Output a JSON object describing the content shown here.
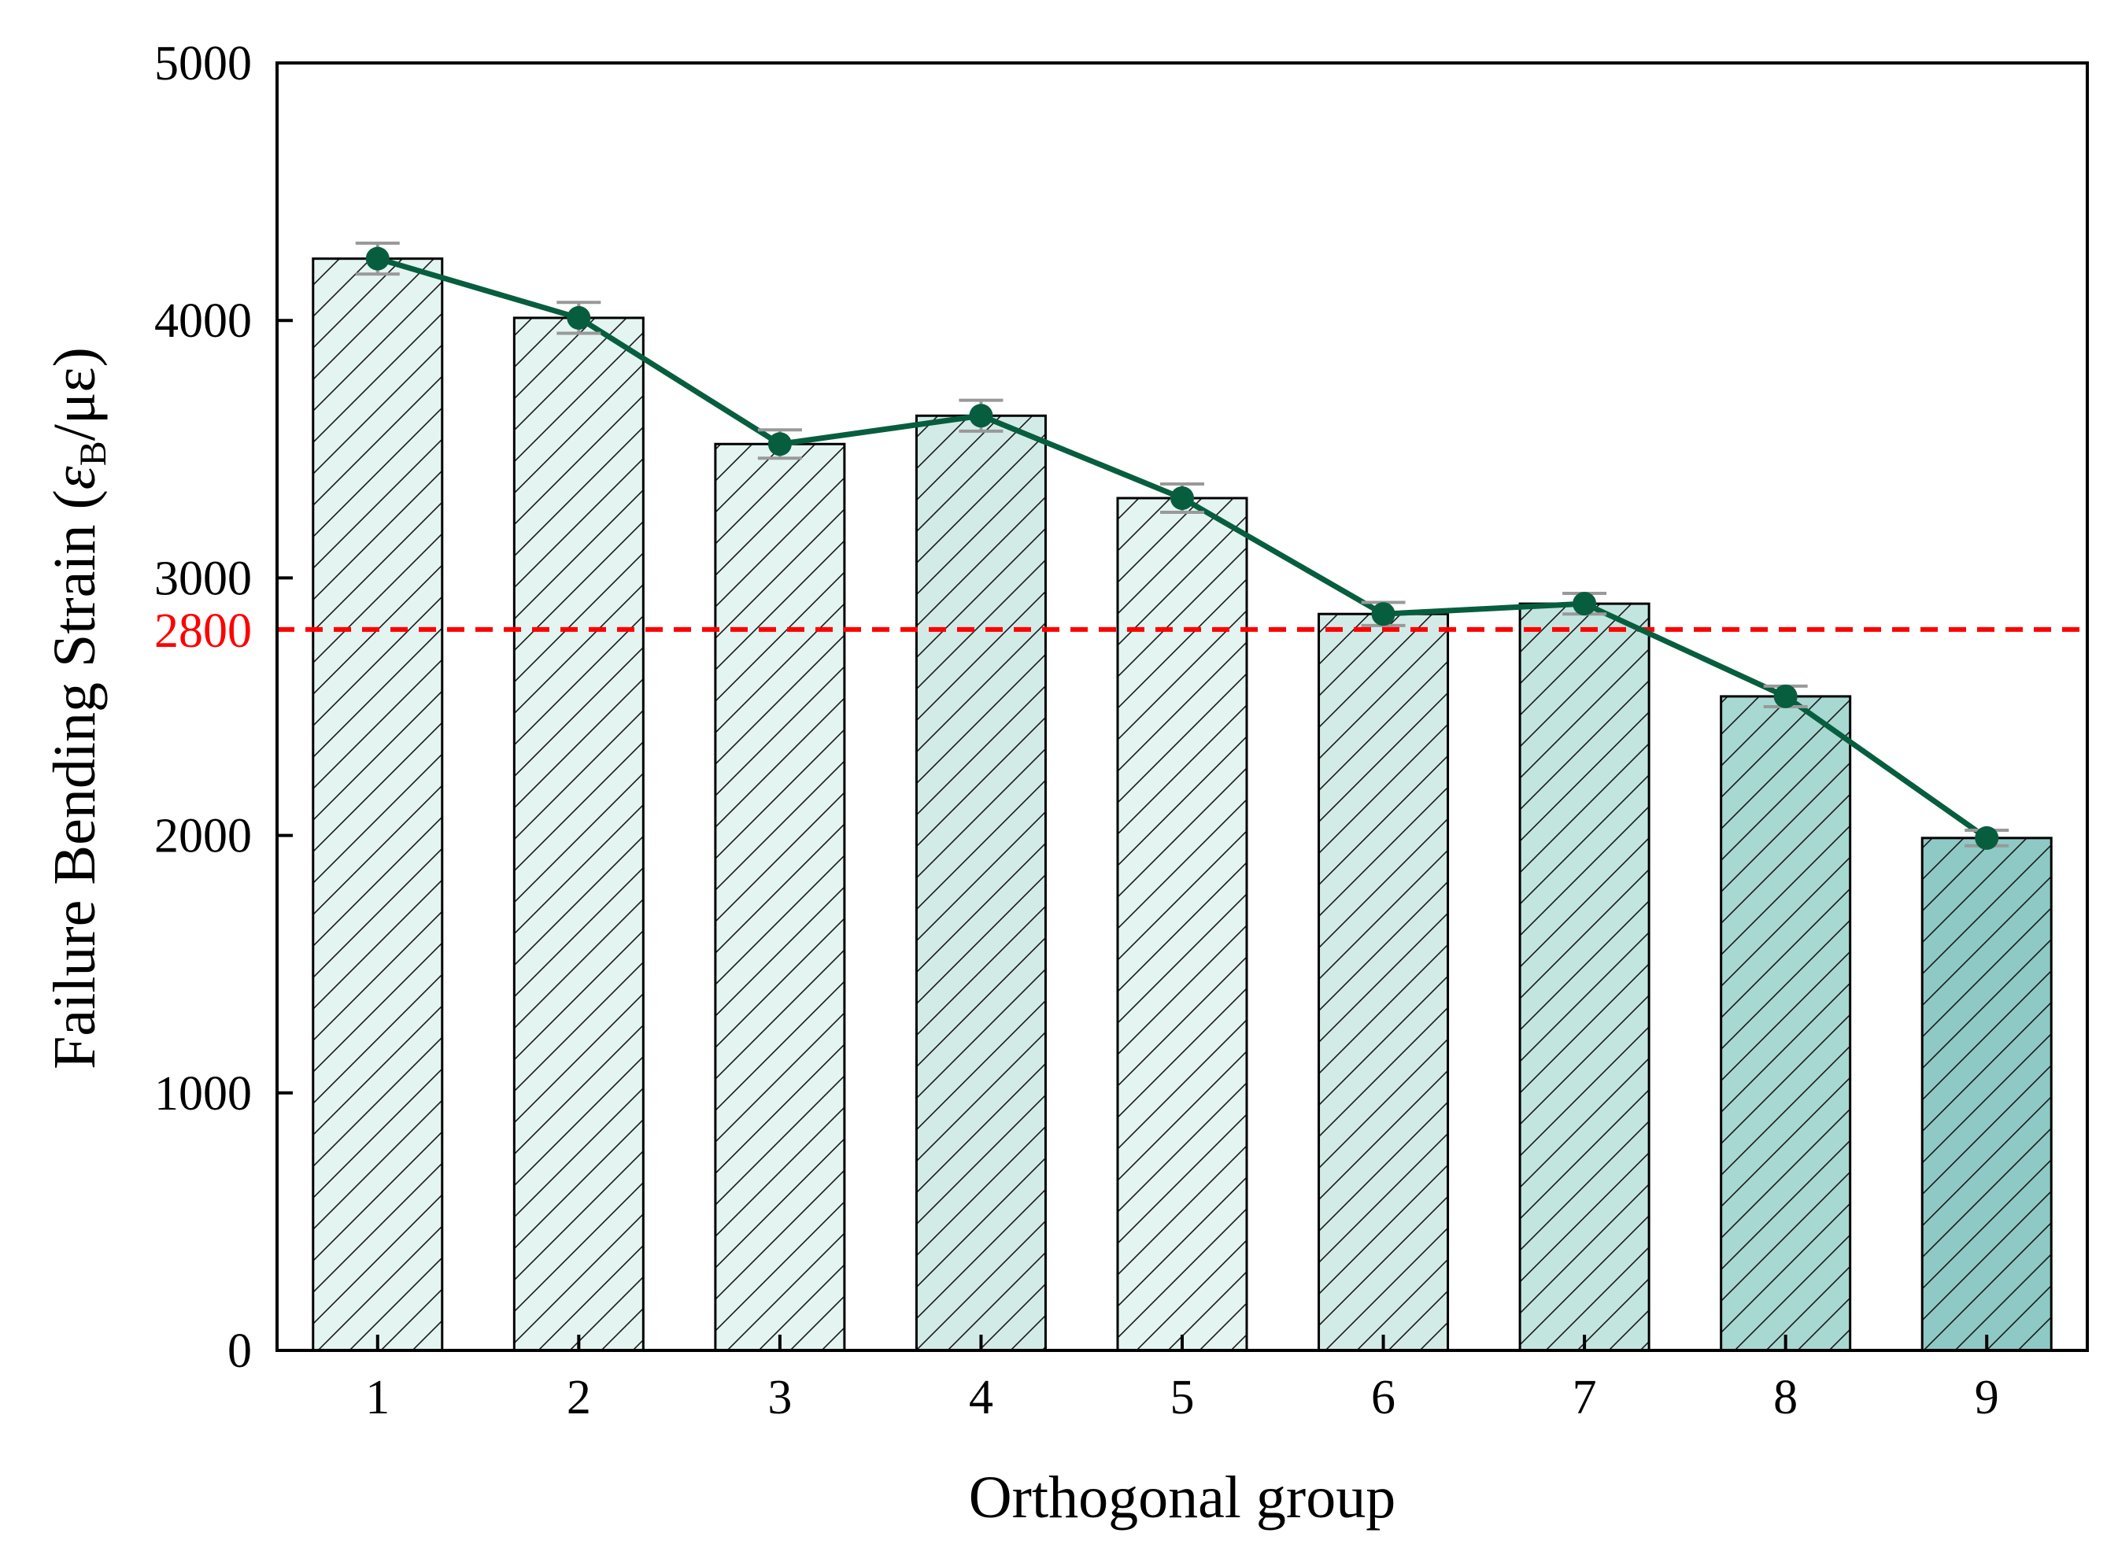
{
  "chart_data": {
    "type": "bar",
    "categories": [
      "1",
      "2",
      "3",
      "4",
      "5",
      "6",
      "7",
      "8",
      "9"
    ],
    "series": [
      {
        "name": "Failure bending strain",
        "values": [
          4240,
          4010,
          3520,
          3630,
          3310,
          2860,
          2900,
          2540,
          1990
        ],
        "errors": [
          60,
          60,
          55,
          60,
          55,
          45,
          40,
          40,
          30
        ],
        "fills": [
          "#e3f4f1",
          "#e3f4f1",
          "#e3f4f1",
          "#d3ebe7",
          "#e3f4f1",
          "#d3ebe7",
          "#c3e5df",
          "#a8d8d2",
          "#8ec9c5"
        ],
        "line_color": "#075e3f",
        "error_color": "#999999"
      }
    ],
    "reference_line": {
      "value": 2800,
      "label": "2800",
      "color": "#ff0000"
    },
    "xlabel": "Orthogonal group",
    "ylabel": {
      "prefix": "Failure Bending Strain (",
      "symbol": "ε",
      "subscript": "B",
      "suffix": "/με)"
    },
    "ylim": [
      0,
      5000
    ],
    "yticks": [
      0,
      1000,
      2000,
      3000,
      4000,
      5000
    ],
    "grid": false,
    "legend": "none"
  }
}
